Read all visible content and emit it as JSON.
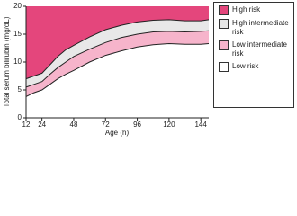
{
  "chart_data": {
    "type": "area",
    "x_label": "Age (h)",
    "y_label": "Total serum bilirubin (mg/dL)",
    "x": [
      12,
      18,
      24,
      30,
      36,
      42,
      48,
      60,
      72,
      84,
      96,
      108,
      120,
      132,
      144,
      150
    ],
    "xlim": [
      12,
      150
    ],
    "xticks": [
      12,
      24,
      48,
      72,
      96,
      120,
      144
    ],
    "ylim": [
      0,
      20
    ],
    "yticks": [
      0,
      5,
      10,
      15,
      20
    ],
    "series": [
      {
        "name": "High risk",
        "color": "#e4467c",
        "values": [
          7.0,
          7.5,
          8.0,
          9.5,
          11.0,
          12.2,
          13.0,
          14.5,
          15.8,
          16.6,
          17.2,
          17.5,
          17.6,
          17.4,
          17.4,
          17.6
        ]
      },
      {
        "name": "High intermediate risk",
        "color": "#e8e8e8",
        "values": [
          5.5,
          6.0,
          6.5,
          7.8,
          9.0,
          10.0,
          11.0,
          12.3,
          13.5,
          14.4,
          15.0,
          15.4,
          15.5,
          15.4,
          15.5,
          15.6
        ]
      },
      {
        "name": "Low intermediate risk",
        "color": "#f6b4cb",
        "values": [
          3.8,
          4.5,
          5.0,
          6.0,
          7.0,
          7.8,
          8.5,
          10.0,
          11.2,
          12.0,
          12.7,
          13.1,
          13.3,
          13.2,
          13.2,
          13.3
        ]
      },
      {
        "name": "Low risk",
        "color": "#ffffff"
      }
    ]
  }
}
